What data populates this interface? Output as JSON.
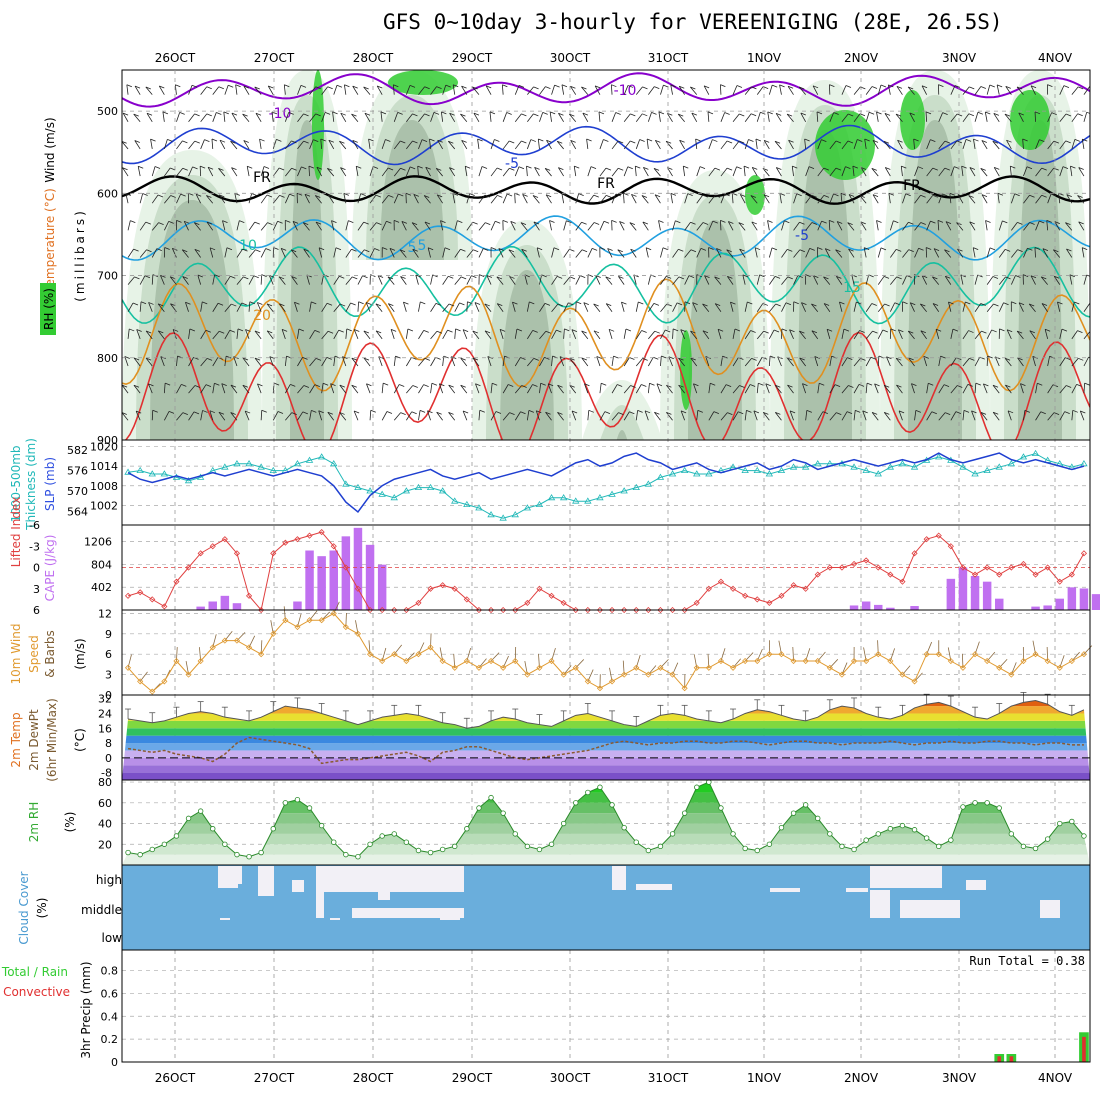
{
  "title": "GFS 0~10day 3-hourly for VEREENIGING (28E, 26.5S)",
  "dates": [
    "26OCT",
    "27OCT",
    "28OCT",
    "29OCT",
    "30OCT",
    "31OCT",
    "1NOV",
    "2NOV",
    "3NOV",
    "4NOV"
  ],
  "colors": {
    "rh_light": "#e6f2e6",
    "rh_mid": "#c8dcc8",
    "rh_gray": "#a9bfa9",
    "rh_green": "#33cc33",
    "temp_cold": "#8800cc",
    "temp_blue": "#1f3fd0",
    "temp_cyan": "#21a0e0",
    "temp_teal": "#16c0a0",
    "temp_orange": "#e09020",
    "temp_red": "#e03030",
    "thickness": "#20b8b8",
    "slp": "#1f3fd0",
    "lifted": "#e04040",
    "cape": "#c070f0",
    "wind10": "#e09a30",
    "rh2m": "#33aa33",
    "cloud": "#6aaedc",
    "cloud_gap": "#f2f0f6",
    "precip_total": "#33cc33",
    "precip_conv": "#e03030"
  },
  "panels": {
    "upper": {
      "axis_labels": [
        "Wind (m/s)",
        "Temperature (°C)",
        "RH (%)",
        "(millibars)"
      ],
      "pressure_ticks": [
        500,
        600,
        700,
        800,
        900
      ],
      "contour_labels": [
        "-10",
        "-10",
        "-5",
        "FR",
        "FR",
        "FR",
        "-5",
        "10",
        "5",
        "5",
        "15",
        "20"
      ]
    },
    "thickness_slp": {
      "axis_labels": [
        "1000-500mb",
        "Thickness (dm)",
        "SLP (mb)"
      ],
      "thickness_ticks": [
        582,
        576,
        570,
        564
      ],
      "slp_ticks": [
        1020,
        1014,
        1008,
        1002
      ]
    },
    "cape_li": {
      "axis_labels": [
        "Lifted Index",
        "CAPE (J/kg)"
      ],
      "li_ticks": [
        -6,
        -3,
        0,
        3,
        6
      ],
      "cape_ticks": [
        1206,
        804,
        402
      ]
    },
    "wind10": {
      "axis_labels": [
        "10m Wind",
        "Speed",
        "& Barbs",
        "(m/s)"
      ],
      "ticks": [
        12,
        9,
        6,
        3,
        0
      ]
    },
    "temp2m": {
      "axis_labels": [
        "2m Temp",
        "2m DewPt",
        "(6hr Min/Max)",
        "(°C)"
      ],
      "ticks": [
        32,
        24,
        16,
        8,
        0,
        -8
      ]
    },
    "rh2m": {
      "axis_labels": [
        "2m RH",
        "(%)"
      ],
      "ticks": [
        80,
        60,
        40,
        20
      ]
    },
    "cloud": {
      "axis_labels": [
        "Cloud Cover",
        "(%)"
      ],
      "levels": [
        "high",
        "middle",
        "low"
      ]
    },
    "precip": {
      "axis_labels": [
        "Total / Rain",
        "Convective",
        "3hr Precip (mm)"
      ],
      "ticks": [
        "0.8",
        "0.6",
        "0.4",
        "0.2",
        "0"
      ],
      "run_total": "Run Total = 0.38"
    }
  },
  "chart_data": [
    {
      "type": "line",
      "name": "thickness",
      "ylabel": "1000-500mb Thickness (dm)",
      "ylim": [
        560,
        585
      ],
      "x_step_hours": 3,
      "values": [
        575.5,
        576,
        575,
        575,
        574,
        573,
        574,
        576,
        577,
        578,
        578,
        577,
        576,
        576,
        578,
        579,
        580,
        578,
        572,
        571,
        570,
        569,
        568,
        570,
        571,
        571,
        570,
        567,
        566,
        565,
        563,
        562,
        563,
        565,
        566,
        568,
        568,
        567,
        567,
        568,
        569,
        570,
        571,
        572,
        574,
        575,
        576,
        575,
        575,
        576,
        577,
        576,
        576,
        575,
        576,
        577,
        577,
        578,
        578,
        578,
        577,
        576,
        575,
        577,
        578,
        577,
        579,
        580,
        579,
        577,
        575,
        576,
        577,
        578,
        580,
        581,
        579,
        578,
        577,
        578
      ]
    },
    {
      "type": "line",
      "name": "slp",
      "ylabel": "SLP (mb)",
      "ylim": [
        996,
        1022
      ],
      "x_step_hours": 3,
      "values": [
        1012,
        1010,
        1009,
        1010,
        1011,
        1010,
        1011,
        1012,
        1011,
        1012,
        1013,
        1012,
        1011,
        1012,
        1013,
        1012,
        1011,
        1008,
        1003,
        1000,
        1005,
        1008,
        1010,
        1011,
        1012,
        1013,
        1011,
        1010,
        1011,
        1012,
        1010,
        1011,
        1012,
        1013,
        1012,
        1011,
        1013,
        1015,
        1016,
        1014,
        1015,
        1017,
        1018,
        1016,
        1015,
        1013,
        1014,
        1015,
        1013,
        1012,
        1013,
        1014,
        1015,
        1013,
        1014,
        1016,
        1015,
        1013,
        1014,
        1015,
        1016,
        1015,
        1014,
        1015,
        1016,
        1015,
        1016,
        1018,
        1016,
        1015,
        1016,
        1017,
        1018,
        1016,
        1015,
        1016,
        1015,
        1014,
        1013,
        1014
      ]
    },
    {
      "type": "line",
      "name": "lifted_index",
      "ylabel": "Lifted Index",
      "ylim": [
        6,
        -6
      ],
      "x_step_hours": 3,
      "values": [
        4,
        3.5,
        4.5,
        5.5,
        2,
        0,
        -2,
        -3,
        -4,
        -2,
        4,
        6,
        -2,
        -3.5,
        -4,
        -4.5,
        -5,
        -3,
        0,
        3,
        6,
        6,
        6,
        6,
        5,
        3,
        2.5,
        3,
        4.5,
        6,
        6,
        6,
        6,
        5,
        3,
        4,
        5,
        6,
        6,
        6,
        6,
        6,
        6,
        6,
        6,
        6,
        6,
        5,
        3,
        2,
        3,
        4,
        4.5,
        5,
        4,
        2.5,
        3,
        1,
        0,
        0,
        -0.5,
        -1,
        0,
        1,
        2,
        -2,
        -4,
        -4.5,
        -3,
        0,
        1,
        0,
        1,
        0,
        -0.5,
        1,
        0,
        2,
        1,
        -2
      ]
    },
    {
      "type": "bar",
      "name": "cape",
      "ylabel": "CAPE (J/kg)",
      "ylim": [
        0,
        1500
      ],
      "bars": [
        [
          6,
          60
        ],
        [
          7,
          150
        ],
        [
          8,
          250
        ],
        [
          9,
          120
        ],
        [
          14,
          150
        ],
        [
          15,
          1050
        ],
        [
          16,
          950
        ],
        [
          17,
          1050
        ],
        [
          18,
          1300
        ],
        [
          19,
          1450
        ],
        [
          20,
          1150
        ],
        [
          21,
          800
        ],
        [
          60,
          80
        ],
        [
          61,
          150
        ],
        [
          62,
          90
        ],
        [
          63,
          40
        ],
        [
          65,
          70
        ],
        [
          68,
          550
        ],
        [
          69,
          750
        ],
        [
          70,
          600
        ],
        [
          71,
          500
        ],
        [
          72,
          200
        ],
        [
          75,
          60
        ],
        [
          76,
          80
        ],
        [
          77,
          200
        ],
        [
          78,
          400
        ],
        [
          79,
          380
        ],
        [
          80,
          280
        ],
        [
          81,
          120
        ]
      ]
    },
    {
      "type": "line",
      "name": "wind10m",
      "ylabel": "10m Wind Speed (m/s)",
      "ylim": [
        0,
        13
      ],
      "x_step_hours": 3,
      "values": [
        4,
        2,
        0.5,
        2,
        5,
        3,
        5,
        7,
        8,
        8,
        7,
        6,
        9,
        11,
        10,
        11,
        11,
        12,
        10,
        9,
        6,
        5,
        6,
        5,
        6,
        7,
        5,
        4,
        5,
        4,
        5,
        4,
        5,
        3,
        4,
        5,
        3,
        4,
        2,
        1,
        2,
        3,
        4,
        3,
        4,
        3,
        1,
        4,
        4,
        5,
        4,
        5,
        5,
        6,
        6,
        5,
        5,
        5,
        4,
        3,
        5,
        5,
        6,
        5,
        3,
        2,
        6,
        6,
        5,
        4,
        6,
        5,
        4,
        3,
        5,
        6,
        5,
        4,
        5,
        6
      ]
    },
    {
      "type": "area",
      "name": "temp2m",
      "ylabel": "2m Temp (°C)",
      "ylim": [
        -12,
        33
      ],
      "x_step_hours": 3,
      "values": [
        21,
        20,
        19,
        20,
        22,
        24,
        25,
        24,
        22,
        21,
        20,
        22,
        25,
        28,
        27,
        26,
        24,
        22,
        20,
        18,
        20,
        22,
        23,
        24,
        23,
        21,
        19,
        18,
        16,
        17,
        20,
        22,
        21,
        19,
        18,
        17,
        20,
        23,
        24,
        22,
        20,
        18,
        17,
        20,
        23,
        24,
        23,
        21,
        20,
        19,
        21,
        24,
        26,
        25,
        23,
        21,
        20,
        22,
        26,
        28,
        27,
        24,
        22,
        21,
        23,
        27,
        29,
        30,
        28,
        25,
        22,
        21,
        24,
        28,
        30,
        31,
        29,
        25,
        23,
        26
      ],
      "dewpoint": [
        5,
        4,
        3,
        4,
        2,
        1,
        0,
        -2,
        2,
        8,
        11,
        10,
        9,
        8,
        7,
        5,
        -3,
        -2,
        -1,
        -1,
        0,
        1,
        2,
        3,
        1,
        -2,
        3,
        4,
        6,
        6,
        4,
        2,
        0,
        -1,
        0,
        1,
        2,
        3,
        4,
        6,
        8,
        9,
        8,
        7,
        8,
        8,
        9,
        9,
        8,
        8,
        9,
        9,
        8,
        7,
        8,
        9,
        9,
        8,
        8,
        7,
        8,
        8,
        8,
        9,
        8,
        7,
        8,
        8,
        9,
        8,
        8,
        9,
        9,
        8,
        8,
        7,
        8,
        8,
        7,
        7
      ]
    },
    {
      "type": "line",
      "name": "rh2m",
      "ylabel": "2m RH (%)",
      "ylim": [
        0,
        85
      ],
      "x_step_hours": 3,
      "values": [
        12,
        10,
        15,
        20,
        28,
        45,
        52,
        35,
        20,
        10,
        8,
        12,
        35,
        60,
        63,
        55,
        38,
        22,
        10,
        8,
        20,
        28,
        30,
        22,
        14,
        12,
        15,
        18,
        35,
        55,
        65,
        50,
        30,
        18,
        15,
        20,
        40,
        60,
        70,
        75,
        58,
        36,
        22,
        14,
        18,
        30,
        50,
        75,
        80,
        55,
        30,
        16,
        14,
        20,
        36,
        50,
        58,
        45,
        30,
        18,
        15,
        24,
        30,
        35,
        38,
        34,
        26,
        18,
        24,
        56,
        60,
        60,
        55,
        30,
        18,
        16,
        25,
        40,
        42,
        28
      ]
    },
    {
      "type": "bar",
      "name": "precip_3hr",
      "ylabel": "3hr Precip (mm)",
      "ylim": [
        0,
        1.0
      ],
      "bars_total": [
        [
          72,
          0.07
        ],
        [
          73,
          0.07
        ],
        [
          79,
          0.26
        ]
      ],
      "bars_convective": [
        [
          72,
          0.05
        ],
        [
          73,
          0.05
        ],
        [
          79,
          0.22
        ]
      ]
    }
  ]
}
